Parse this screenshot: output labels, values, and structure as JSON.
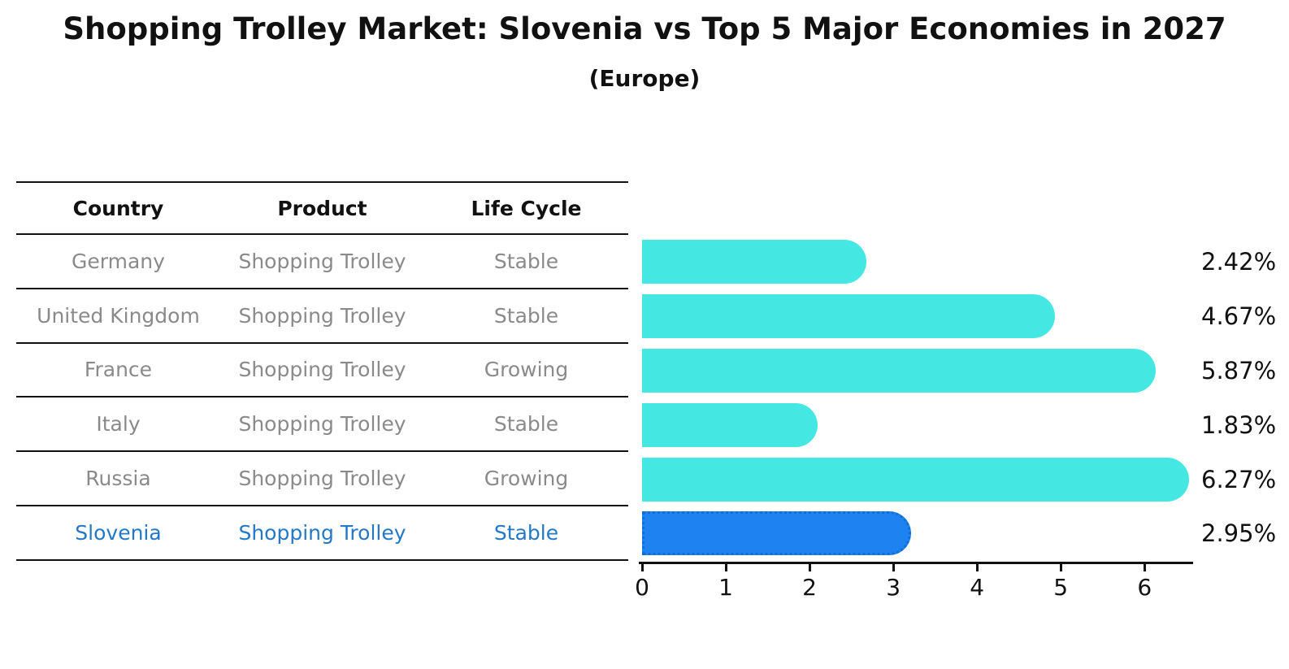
{
  "title": "Shopping Trolley Market: Slovenia vs Top 5 Major Economies in 2027",
  "subtitle": "(Europe)",
  "table": {
    "headers": [
      "Country",
      "Product",
      "Life Cycle"
    ],
    "rows": [
      {
        "country": "Germany",
        "product": "Shopping Trolley",
        "life_cycle": "Stable"
      },
      {
        "country": "United Kingdom",
        "product": "Shopping Trolley",
        "life_cycle": "Stable"
      },
      {
        "country": "France",
        "product": "Shopping Trolley",
        "life_cycle": "Growing"
      },
      {
        "country": "Italy",
        "product": "Shopping Trolley",
        "life_cycle": "Stable"
      },
      {
        "country": "Russia",
        "product": "Shopping Trolley",
        "life_cycle": "Growing"
      },
      {
        "country": "Slovenia",
        "product": "Shopping Trolley",
        "life_cycle": "Stable"
      }
    ]
  },
  "chart_data": {
    "type": "bar",
    "orientation": "horizontal",
    "title": "Shopping Trolley Market: Slovenia vs Top 5 Major Economies in 2027",
    "subtitle": "(Europe)",
    "categories": [
      "Germany",
      "United Kingdom",
      "France",
      "Italy",
      "Russia",
      "Slovenia"
    ],
    "values": [
      2.42,
      4.67,
      5.87,
      1.83,
      6.27,
      2.95
    ],
    "value_labels": [
      "2.42%",
      "4.67%",
      "5.87%",
      "1.83%",
      "6.27%",
      "2.95%"
    ],
    "xlim": [
      0,
      6.58
    ],
    "x_ticks": [
      "0",
      "1",
      "2",
      "3",
      "4",
      "5",
      "6"
    ],
    "grid": false,
    "legend": "none",
    "highlight_index": 5,
    "bar_color": "#45E7E2",
    "highlight_color": "#1E82F0",
    "highlight_border_color": "#0E6FD6",
    "highlight_text_color": "#2478C8",
    "table_text_color": "#8a8a8a",
    "axis_color": "#111111"
  }
}
